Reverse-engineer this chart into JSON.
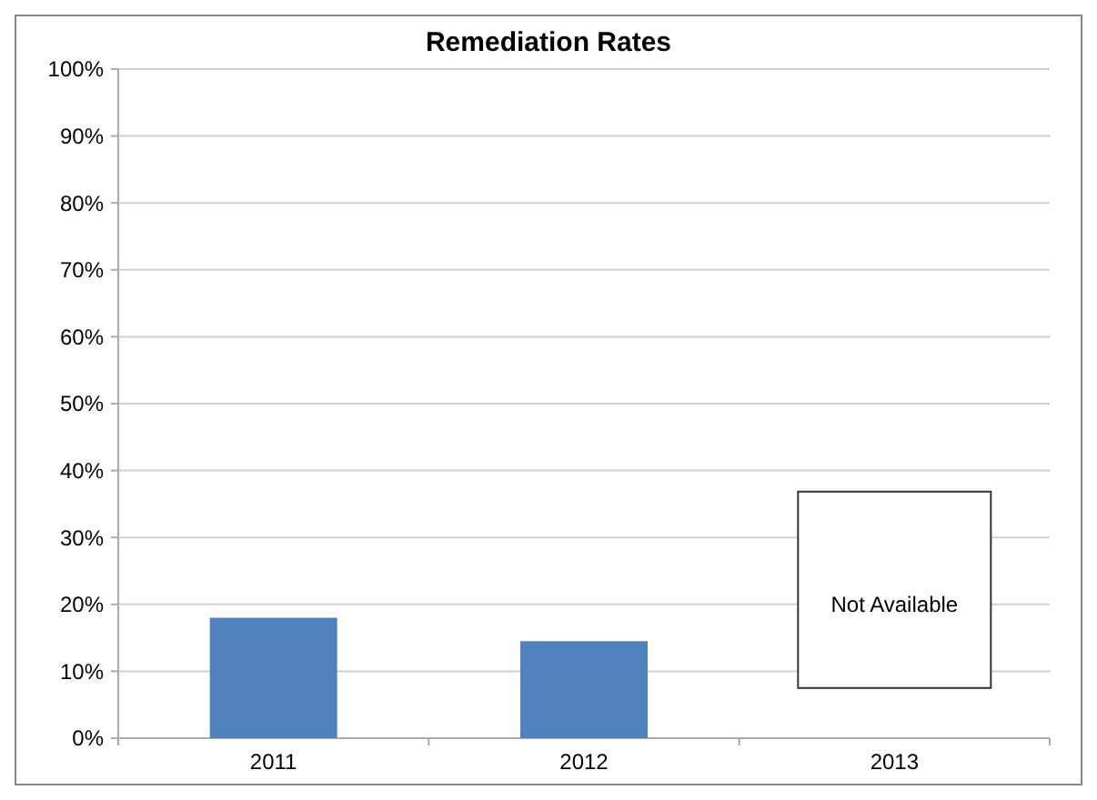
{
  "chart_data": {
    "type": "bar",
    "title": "Remediation Rates",
    "categories": [
      "2011",
      "2012",
      "2013"
    ],
    "values": [
      18,
      14.5,
      null
    ],
    "color": "#4f81bd",
    "ylim": [
      0,
      100
    ],
    "yticks": [
      {
        "value": 0,
        "label": "0%"
      },
      {
        "value": 10,
        "label": "10%"
      },
      {
        "value": 20,
        "label": "20%"
      },
      {
        "value": 30,
        "label": "30%"
      },
      {
        "value": 40,
        "label": "40%"
      },
      {
        "value": 50,
        "label": "50%"
      },
      {
        "value": 60,
        "label": "60%"
      },
      {
        "value": 70,
        "label": "70%"
      },
      {
        "value": 80,
        "label": "80%"
      },
      {
        "value": 90,
        "label": "90%"
      },
      {
        "value": 100,
        "label": "100%"
      }
    ],
    "grid": "y",
    "annotations": [
      "Not Available"
    ]
  }
}
